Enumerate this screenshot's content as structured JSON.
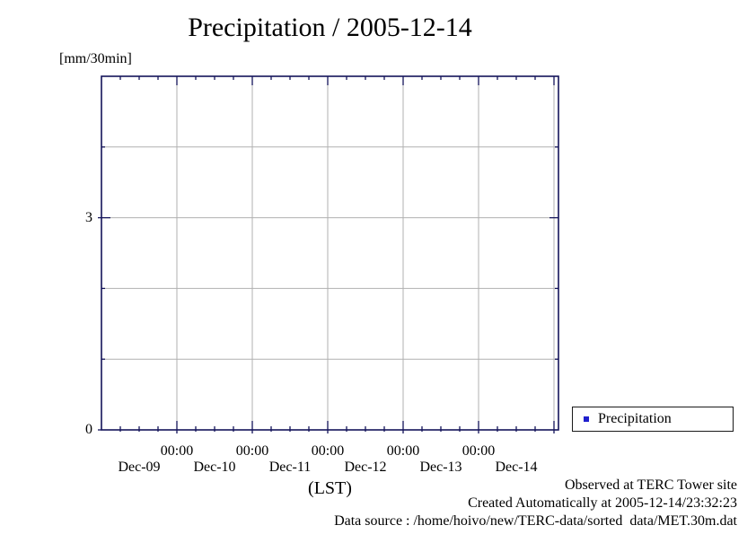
{
  "title": "Precipitation / 2005-12-14",
  "y_axis": {
    "unit_label": "[mm/30min]",
    "tick_labels": [
      {
        "value": 3,
        "label": "3"
      },
      {
        "value": 0,
        "label": "0"
      }
    ]
  },
  "x_axis": {
    "axis_label": "(LST)",
    "time_tick_labels": [
      "00:00",
      "00:00",
      "00:00",
      "00:00",
      "00:00"
    ],
    "day_labels": [
      "Dec-09",
      "Dec-10",
      "Dec-11",
      "Dec-12",
      "Dec-13",
      "Dec-14"
    ]
  },
  "legend": {
    "items": [
      {
        "label": "Precipitation",
        "marker": "square",
        "marker_color": "#2020cd"
      }
    ]
  },
  "footer": {
    "lines": [
      "Observed at TERC Tower site",
      "Created Automatically at 2005-12-14/23:32:23",
      "Data source : /home/hoivo/new/TERC-data/sorted  data/MET.30m.dat"
    ]
  },
  "colors": {
    "axis_border": "#14145a",
    "grid": "#b0b0b0",
    "text": "#000000",
    "legend_marker": "#2020cd"
  },
  "chart_data": {
    "type": "scatter",
    "title": "Precipitation / 2005-12-14",
    "xlabel": "(LST)",
    "ylabel": "[mm/30min]",
    "ylim": [
      0,
      5
    ],
    "y_labeled_ticks": [
      0,
      3
    ],
    "y_gridlines": [
      1,
      2,
      3,
      4
    ],
    "x_days": [
      "Dec-09",
      "Dec-10",
      "Dec-11",
      "Dec-12",
      "Dec-13",
      "Dec-14"
    ],
    "x_major_tick_time": "00:00",
    "x_minor_ticks_per_day": 4,
    "grid": true,
    "legend_position": "outside-bottom-right",
    "series": [
      {
        "name": "Precipitation",
        "color": "#2020cd",
        "marker": "square",
        "points": []
      }
    ]
  }
}
